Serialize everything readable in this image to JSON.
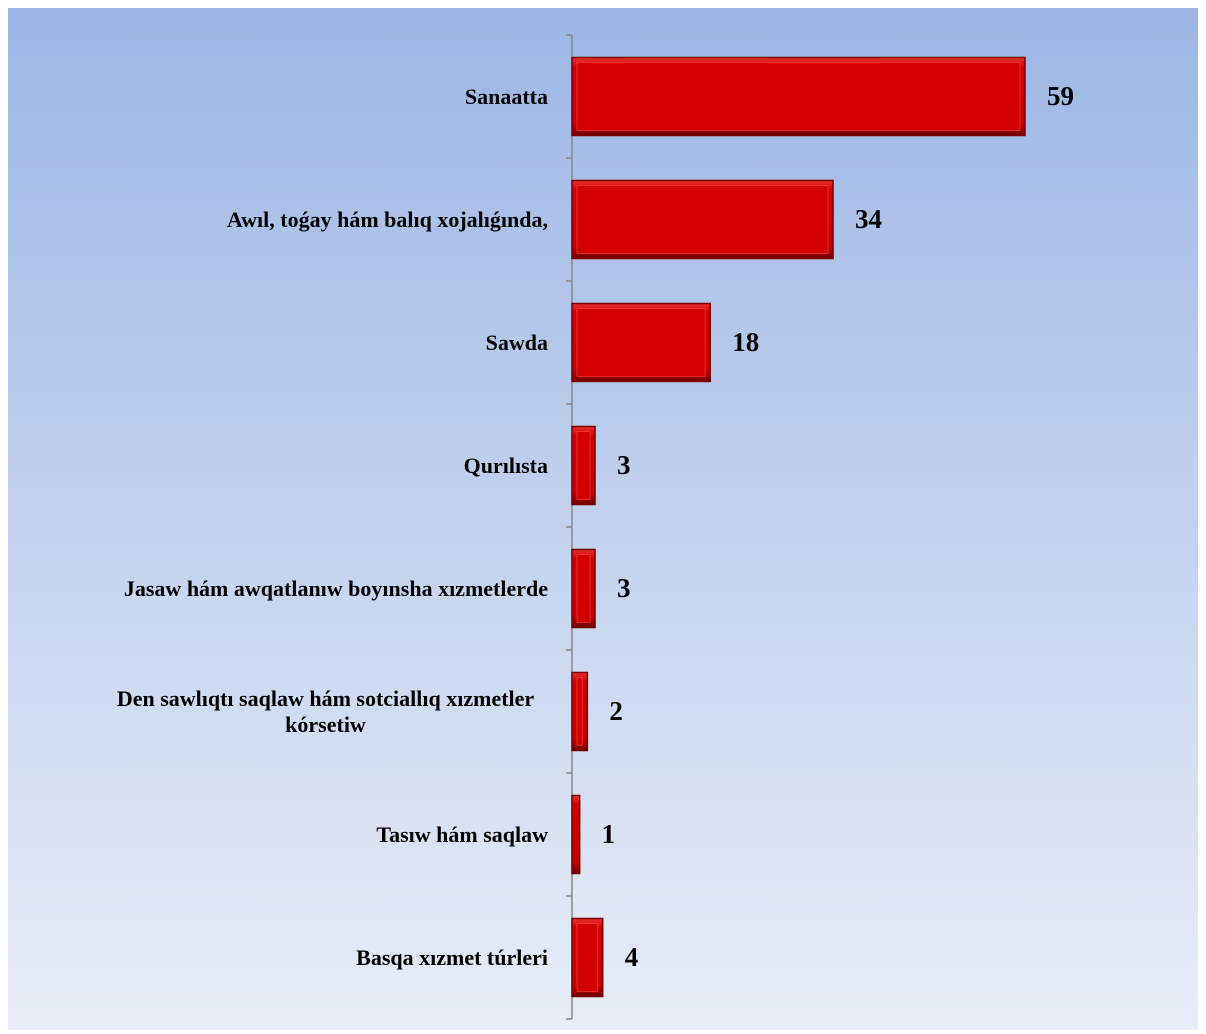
{
  "chart_data": {
    "type": "bar",
    "orientation": "horizontal",
    "categories": [
      "Sanaatta",
      "Awıl, toǵay hám balıq xojalıǵında,",
      "Sawda",
      "Qurılısta",
      "Jasaw hám awqatlanıw boyınsha xızmetlerde",
      "Den sawlıqtı saqlaw hám sotciallıq xızmetler kórsetiw",
      "Tasıw hám saqlaw",
      "Basqa xızmet túrleri"
    ],
    "values": [
      59,
      34,
      18,
      3,
      3,
      2,
      1,
      4
    ],
    "color": "#d40000"
  }
}
